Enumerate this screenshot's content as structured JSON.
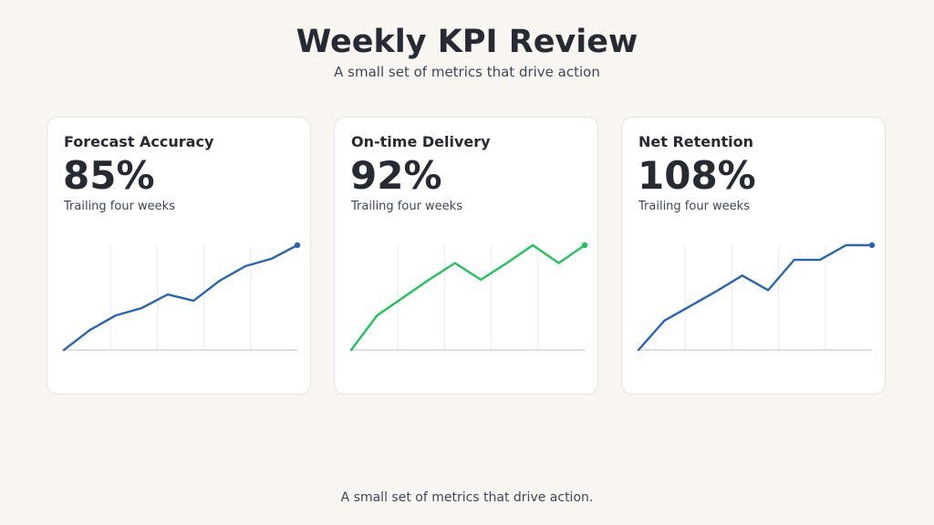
{
  "header": {
    "title": "Weekly KPI Review",
    "subtitle": "A small set of metrics that drive action"
  },
  "footer": {
    "text": "A small set of metrics that drive action."
  },
  "colors": {
    "blue": "#2b65b0",
    "green": "#22c25e",
    "grid": "#ebebeb",
    "baseline": "#d4d4d4"
  },
  "chart_data": [
    {
      "type": "line",
      "title": "Forecast Accuracy",
      "value_label": "85%",
      "note": "Trailing four weeks",
      "color": "#2b65b0",
      "values": [
        0,
        19,
        33,
        40,
        53,
        47,
        66,
        80,
        87,
        100
      ],
      "ylim": [
        0,
        100
      ],
      "grid": true
    },
    {
      "type": "line",
      "title": "On-time Delivery",
      "value_label": "92%",
      "note": "Trailing four weeks",
      "color": "#22c25e",
      "values": [
        0,
        33,
        50,
        67,
        83,
        67,
        83,
        100,
        83,
        100
      ],
      "ylim": [
        0,
        100
      ],
      "grid": true
    },
    {
      "type": "line",
      "title": "Net Retention",
      "value_label": "108%",
      "note": "Trailing four weeks",
      "color": "#2b65b0",
      "values": [
        0,
        28,
        42,
        56,
        71,
        57,
        86,
        86,
        100,
        100
      ],
      "ylim": [
        0,
        100
      ],
      "grid": true
    }
  ]
}
